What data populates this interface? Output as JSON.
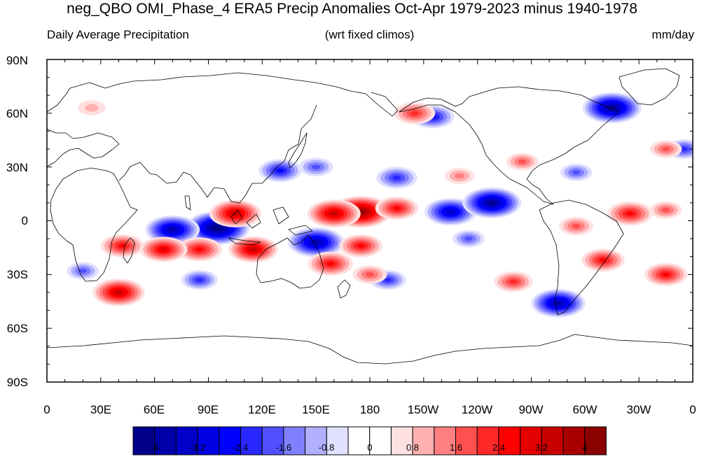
{
  "title": "neg_QBO OMI_Phase_4 ERA5 Precip Anomalies Oct-Apr 1979-2023 minus 1940-1978",
  "subtitle_left": "Daily Average Precipitation",
  "subtitle_center": "(wrt fixed climos)",
  "subtitle_right": "mm/day",
  "lat_labels": [
    "90N",
    "60N",
    "30N",
    "0",
    "30S",
    "60S",
    "90S"
  ],
  "lon_labels": [
    "0",
    "30E",
    "60E",
    "90E",
    "120E",
    "150E",
    "180",
    "150W",
    "120W",
    "90W",
    "60W",
    "30W",
    "0"
  ],
  "colorbar": {
    "colors": [
      "#00008b",
      "#0000a8",
      "#0000c8",
      "#0000e4",
      "#0000ff",
      "#2828ff",
      "#5050ff",
      "#8080ff",
      "#b0b0ff",
      "#e0e0ff",
      "#ffffff",
      "#ffffff",
      "#ffe0e0",
      "#ffb0b0",
      "#ff8080",
      "#ff5050",
      "#ff2828",
      "#ff0000",
      "#e40000",
      "#c80000",
      "#a80000",
      "#8b0000"
    ],
    "tick_labels": [
      "-4",
      "-3.2",
      "-2.4",
      "-1.6",
      "-0.8",
      "0",
      "0.8",
      "1.6",
      "2.4",
      "3.2",
      "4"
    ]
  },
  "anomalies": [
    {
      "lon": 95,
      "lat": -4,
      "value": -4.5
    },
    {
      "lon": 70,
      "lat": -5,
      "value": -3.6
    },
    {
      "lon": 175,
      "lat": 5,
      "value": 4.2
    },
    {
      "lon": 160,
      "lat": 4,
      "value": 3.5
    },
    {
      "lon": 195,
      "lat": 7,
      "value": 2.6
    },
    {
      "lon": 105,
      "lat": 4,
      "value": 3.4
    },
    {
      "lon": 115,
      "lat": -16,
      "value": 3.2
    },
    {
      "lon": 85,
      "lat": -16,
      "value": 2.8
    },
    {
      "lon": 65,
      "lat": -16,
      "value": 3.0
    },
    {
      "lon": 42,
      "lat": -14,
      "value": 2.6
    },
    {
      "lon": 150,
      "lat": -12,
      "value": -3.8
    },
    {
      "lon": 158,
      "lat": -24,
      "value": 2.8
    },
    {
      "lon": 175,
      "lat": -14,
      "value": 2.6
    },
    {
      "lon": 40,
      "lat": -40,
      "value": 3.4
    },
    {
      "lon": 225,
      "lat": 5,
      "value": -3.4
    },
    {
      "lon": 248,
      "lat": 10,
      "value": -4.0
    },
    {
      "lon": 325,
      "lat": 4,
      "value": 2.8
    },
    {
      "lon": 345,
      "lat": 6,
      "value": 1.6
    },
    {
      "lon": 295,
      "lat": -3,
      "value": 1.8
    },
    {
      "lon": 310,
      "lat": -22,
      "value": 2.6
    },
    {
      "lon": 345,
      "lat": -30,
      "value": 2.6
    },
    {
      "lon": 285,
      "lat": -46,
      "value": -3.6
    },
    {
      "lon": 260,
      "lat": -34,
      "value": 2.2
    },
    {
      "lon": 195,
      "lat": 24,
      "value": -2.4
    },
    {
      "lon": 215,
      "lat": 58,
      "value": -2.6
    },
    {
      "lon": 205,
      "lat": 60,
      "value": 2.4
    },
    {
      "lon": 315,
      "lat": 63,
      "value": -4.0
    },
    {
      "lon": 130,
      "lat": 28,
      "value": -2.6
    },
    {
      "lon": 150,
      "lat": 30,
      "value": -1.8
    },
    {
      "lon": 85,
      "lat": -33,
      "value": -2.0
    },
    {
      "lon": 265,
      "lat": 33,
      "value": 1.6
    },
    {
      "lon": 295,
      "lat": 27,
      "value": -1.6
    },
    {
      "lon": 235,
      "lat": -10,
      "value": -1.6
    },
    {
      "lon": 190,
      "lat": -33,
      "value": -2.0
    },
    {
      "lon": 20,
      "lat": -28,
      "value": -1.6
    },
    {
      "lon": 355,
      "lat": 40,
      "value": -2.0
    },
    {
      "lon": 180,
      "lat": -30,
      "value": 1.8
    },
    {
      "lon": 230,
      "lat": 25,
      "value": 1.4
    },
    {
      "lon": 345,
      "lat": 40,
      "value": 1.6
    },
    {
      "lon": 25,
      "lat": 63,
      "value": 1.2
    }
  ]
}
